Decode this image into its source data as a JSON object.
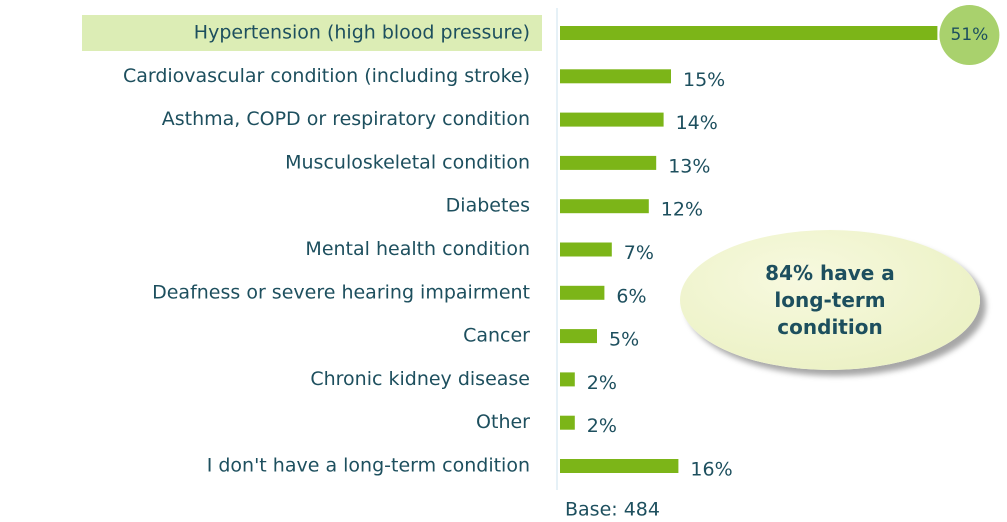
{
  "chart_data": {
    "type": "bar",
    "orientation": "horizontal",
    "categories": [
      "Hypertension (high blood pressure)",
      "Cardiovascular condition (including stroke)",
      "Asthma, COPD or respiratory condition",
      "Musculoskeletal condition",
      "Diabetes",
      "Mental health condition",
      "Deafness or severe hearing impairment",
      "Cancer",
      "Chronic kidney disease",
      "Other",
      "I don't have a long-term condition"
    ],
    "values": [
      51,
      15,
      14,
      13,
      12,
      7,
      6,
      5,
      2,
      2,
      16
    ],
    "value_labels": [
      "51%",
      "15%",
      "14%",
      "13%",
      "12%",
      "7%",
      "6%",
      "5%",
      "2%",
      "2%",
      "16%"
    ],
    "color": "#7cb518",
    "annotation": "84% have a long-term condition",
    "note": "Base: 484"
  }
}
